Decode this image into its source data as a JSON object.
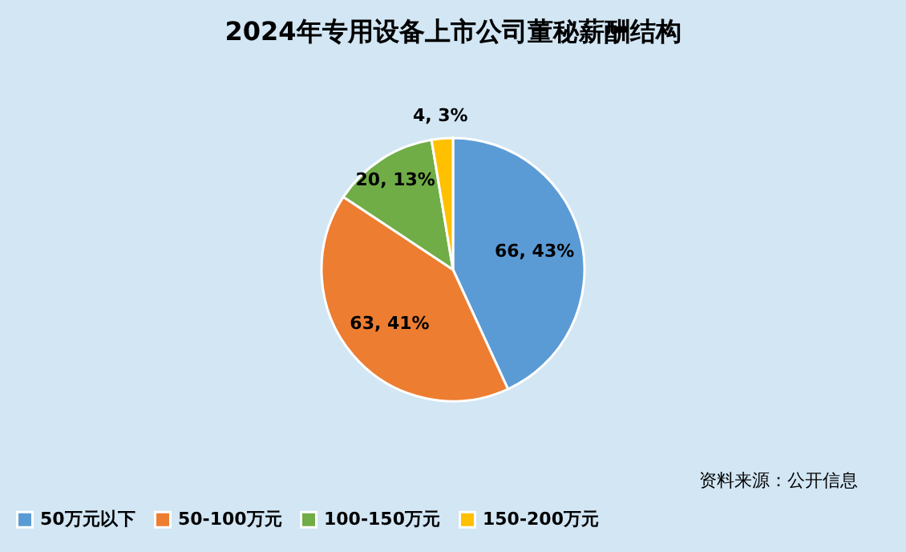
{
  "chart_data": {
    "type": "pie",
    "title": "2024年专用设备上市公司董秘薪酬结构",
    "categories": [
      "50万元以下",
      "50-100万元",
      "100-150万元",
      "150-200万元"
    ],
    "values": [
      66,
      63,
      20,
      4
    ],
    "colors": [
      "#5b9bd5",
      "#ed7d31",
      "#70ad47",
      "#ffc000"
    ],
    "value_labels": [
      "66, 43%",
      "63, 41%",
      "20, 13%",
      "4, 3%"
    ],
    "legend": "bottom",
    "annotations": [
      "资料来源：公开信息"
    ]
  }
}
